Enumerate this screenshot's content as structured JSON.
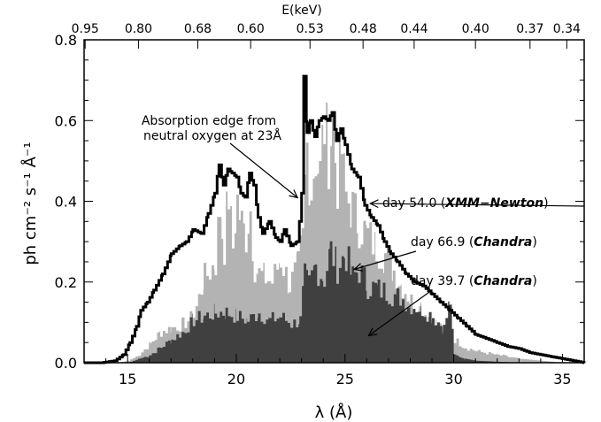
{
  "chart_data": {
    "type": "area",
    "xlabel": "λ (Å)",
    "ylabel": "ph cm⁻² s⁻¹ Å⁻¹",
    "top_axis_label": "E(keV)",
    "xlim": [
      13,
      36
    ],
    "ylim": [
      0,
      0.8
    ],
    "x_ticks": [
      15,
      20,
      25,
      30,
      35
    ],
    "y_ticks": [
      0.0,
      0.2,
      0.4,
      0.6,
      0.8
    ],
    "y_tick_labels": [
      "0.0",
      "0.2",
      "0.4",
      "0.6",
      "0.8"
    ],
    "top_ticks": [
      {
        "label": "0.95",
        "wavelength": 13.05
      },
      {
        "label": "0.80",
        "wavelength": 15.5
      },
      {
        "label": "0.68",
        "wavelength": 18.23
      },
      {
        "label": "0.60",
        "wavelength": 20.66
      },
      {
        "label": "0.53",
        "wavelength": 23.39
      },
      {
        "label": "0.48",
        "wavelength": 25.83
      },
      {
        "label": "0.44",
        "wavelength": 28.18
      },
      {
        "label": "0.40",
        "wavelength": 31.0
      },
      {
        "label": "0.37",
        "wavelength": 33.51
      },
      {
        "label": "0.34",
        "wavelength": 35.2
      }
    ],
    "series": [
      {
        "name": "day 54.0 (XMM−Newton)",
        "style": "line",
        "color": "#000000",
        "x": [
          13.0,
          13.8,
          14.4,
          14.8,
          15.1,
          15.4,
          15.6,
          15.9,
          16.2,
          16.6,
          17.0,
          17.4,
          17.7,
          18.0,
          18.4,
          18.7,
          19.0,
          19.2,
          19.4,
          19.6,
          19.8,
          20.0,
          20.2,
          20.4,
          20.6,
          20.8,
          21.0,
          21.2,
          21.5,
          21.8,
          22.0,
          22.2,
          22.5,
          22.8,
          22.9,
          23.0,
          23.1,
          23.25,
          23.4,
          23.6,
          23.8,
          24.0,
          24.2,
          24.4,
          24.6,
          24.8,
          25.0,
          25.3,
          25.6,
          25.9,
          26.2,
          26.5,
          26.8,
          27.1,
          27.4,
          27.8,
          28.2,
          28.6,
          29.0,
          29.4,
          29.8,
          30.2,
          30.6,
          31.0,
          31.5,
          32.0,
          32.5,
          33.0,
          33.5,
          34.0,
          34.5,
          35.0,
          35.5,
          36.0
        ],
        "y": [
          0.0,
          0.0,
          0.005,
          0.02,
          0.05,
          0.09,
          0.13,
          0.15,
          0.18,
          0.22,
          0.27,
          0.29,
          0.3,
          0.33,
          0.32,
          0.37,
          0.42,
          0.49,
          0.44,
          0.48,
          0.47,
          0.46,
          0.42,
          0.41,
          0.47,
          0.44,
          0.36,
          0.32,
          0.35,
          0.31,
          0.3,
          0.33,
          0.29,
          0.3,
          0.35,
          0.42,
          0.71,
          0.57,
          0.6,
          0.56,
          0.6,
          0.61,
          0.6,
          0.62,
          0.55,
          0.58,
          0.54,
          0.48,
          0.46,
          0.39,
          0.36,
          0.34,
          0.3,
          0.27,
          0.25,
          0.22,
          0.2,
          0.19,
          0.17,
          0.15,
          0.13,
          0.11,
          0.09,
          0.07,
          0.06,
          0.05,
          0.04,
          0.035,
          0.025,
          0.02,
          0.015,
          0.01,
          0.005,
          0.0
        ]
      },
      {
        "name": "day 66.9 (Chandra)",
        "style": "area",
        "color": "#b3b3b3",
        "x": [
          13.0,
          14.5,
          15.0,
          15.5,
          16.0,
          16.5,
          17.0,
          17.5,
          18.0,
          18.5,
          19.0,
          19.2,
          19.4,
          19.6,
          19.8,
          20.0,
          20.2,
          20.4,
          20.6,
          20.8,
          21.0,
          21.3,
          21.6,
          22.0,
          22.4,
          22.8,
          23.0,
          23.2,
          23.4,
          23.6,
          23.8,
          24.0,
          24.2,
          24.4,
          24.6,
          24.8,
          25.0,
          25.3,
          25.6,
          26.0,
          26.4,
          26.8,
          27.2,
          27.6,
          28.0,
          28.4,
          28.8,
          29.2,
          29.6,
          30.0,
          30.5,
          31.0,
          32.0,
          33.0,
          34.0,
          35.0,
          36.0
        ],
        "y": [
          0.0,
          0.0,
          0.005,
          0.02,
          0.05,
          0.08,
          0.09,
          0.1,
          0.12,
          0.22,
          0.26,
          0.4,
          0.3,
          0.44,
          0.3,
          0.42,
          0.36,
          0.33,
          0.4,
          0.25,
          0.23,
          0.22,
          0.21,
          0.27,
          0.2,
          0.25,
          0.32,
          0.56,
          0.45,
          0.54,
          0.49,
          0.62,
          0.55,
          0.62,
          0.47,
          0.55,
          0.43,
          0.4,
          0.36,
          0.33,
          0.3,
          0.28,
          0.24,
          0.2,
          0.16,
          0.14,
          0.12,
          0.1,
          0.08,
          0.06,
          0.04,
          0.03,
          0.02,
          0.01,
          0.005,
          0.0,
          0.0
        ]
      },
      {
        "name": "day 39.7 (Chandra)",
        "style": "area",
        "color": "#404040",
        "x": [
          13.0,
          15.0,
          15.5,
          16.0,
          16.5,
          17.0,
          17.5,
          18.0,
          18.5,
          19.0,
          19.5,
          20.0,
          20.5,
          21.0,
          21.5,
          22.0,
          22.5,
          22.9,
          23.1,
          23.3,
          23.6,
          24.0,
          24.3,
          24.6,
          25.0,
          25.3,
          25.6,
          26.0,
          26.5,
          27.0,
          27.5,
          28.0,
          28.5,
          29.0,
          29.5,
          29.8,
          30.0,
          30.5,
          31.0,
          33.0,
          36.0
        ],
        "y": [
          0.0,
          0.0,
          0.01,
          0.02,
          0.04,
          0.06,
          0.08,
          0.11,
          0.12,
          0.13,
          0.13,
          0.12,
          0.11,
          0.13,
          0.11,
          0.12,
          0.1,
          0.11,
          0.22,
          0.2,
          0.25,
          0.22,
          0.29,
          0.25,
          0.28,
          0.22,
          0.24,
          0.2,
          0.19,
          0.18,
          0.17,
          0.15,
          0.14,
          0.12,
          0.09,
          0.16,
          0.02,
          0.01,
          0.005,
          0.0,
          0.0
        ]
      }
    ],
    "annotations": [
      {
        "text_lines": [
          "Absorption edge from",
          "neutral oxygen at 23Å"
        ],
        "point_to": [
          22.9,
          0.4
        ]
      },
      {
        "text": "day 54.0 (",
        "italic": "XMM−Newton",
        "text_end": ")",
        "point_to": [
          26.0,
          0.39
        ]
      },
      {
        "text": "day 66.9 (",
        "italic": "Chandra",
        "text_end": ")",
        "point_to": [
          25.5,
          0.24
        ]
      },
      {
        "text": "day 39.7 (",
        "italic": "Chandra",
        "text_end": ")",
        "point_to": [
          26.0,
          0.08
        ]
      }
    ]
  }
}
